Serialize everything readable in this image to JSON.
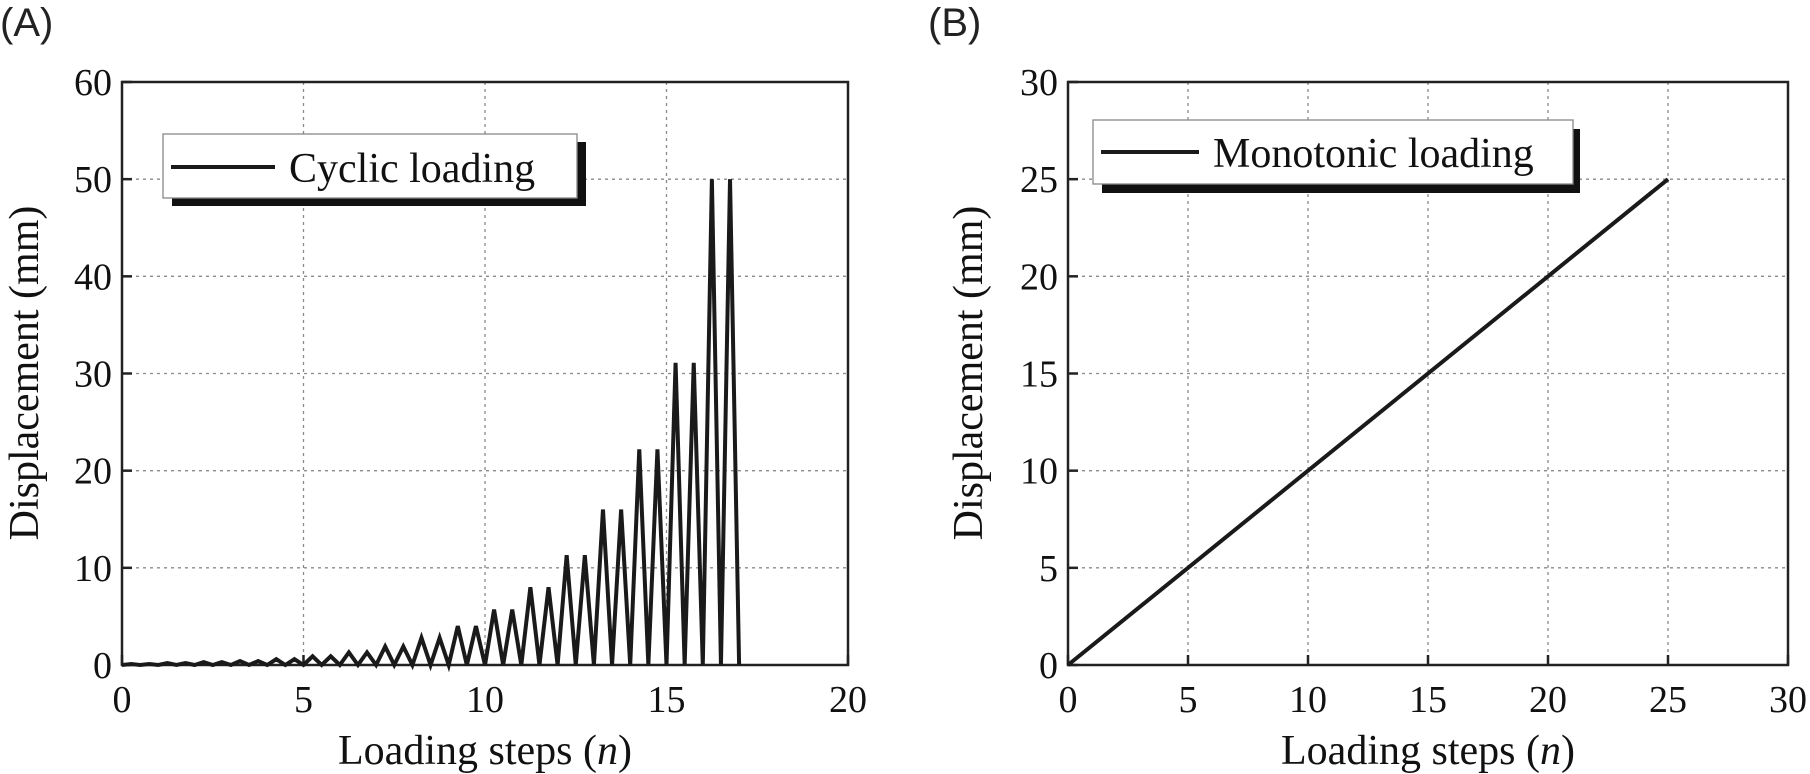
{
  "chart_data": [
    {
      "panel_label": "(A)",
      "type": "line",
      "xlabel_main": "Loading steps (",
      "xlabel_var": "n",
      "xlabel_end": ")",
      "ylabel": "Displacement (mm)",
      "xlim": [
        0,
        20
      ],
      "ylim": [
        0,
        60
      ],
      "xticks": [
        "0",
        "5",
        "10",
        "15",
        "20"
      ],
      "yticks": [
        "0",
        "10",
        "20",
        "30",
        "40",
        "50",
        "60"
      ],
      "grid": true,
      "legend_position": "top-left",
      "series": [
        {
          "name": "Cyclic loading",
          "amplitudes": [
            0.1,
            0.1,
            0.2,
            0.2,
            0.3,
            0.3,
            0.4,
            0.4,
            0.6,
            0.6,
            0.9,
            0.9,
            1.3,
            1.3,
            1.9,
            1.9,
            2.8,
            2.8,
            4.0,
            4.0,
            5.7,
            5.7,
            8.0,
            8.0,
            11.3,
            11.3,
            16.0,
            16.0,
            22.2,
            22.2,
            31.1,
            31.1,
            50.0,
            50.0
          ],
          "x_start": 0,
          "x_end": 17,
          "y_end": 0
        }
      ]
    },
    {
      "panel_label": "(B)",
      "type": "line",
      "xlabel_main": "Loading steps (",
      "xlabel_var": "n",
      "xlabel_end": ")",
      "ylabel": "Displacement (mm)",
      "xlim": [
        0,
        30
      ],
      "ylim": [
        0,
        30
      ],
      "xticks": [
        "0",
        "5",
        "10",
        "15",
        "20",
        "25",
        "30"
      ],
      "yticks": [
        "0",
        "5",
        "10",
        "15",
        "20",
        "25",
        "30"
      ],
      "grid": true,
      "legend_position": "top-left",
      "series": [
        {
          "name": "Monotonic loading",
          "x": [
            0,
            25
          ],
          "y": [
            0,
            25
          ]
        }
      ]
    }
  ]
}
